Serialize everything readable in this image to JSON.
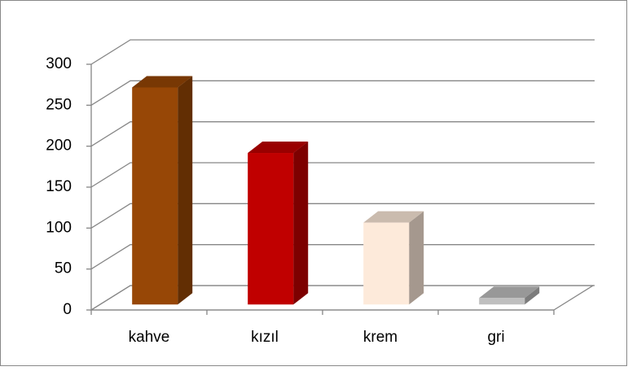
{
  "chart_data": {
    "type": "bar3d",
    "categories": [
      "kahve",
      "kızıl",
      "krem",
      "gri"
    ],
    "series": [
      {
        "values": [
          265,
          185,
          100,
          8
        ],
        "colors": [
          "#974706",
          "#c00000",
          "#fdeada",
          "#bfbfbf"
        ]
      }
    ],
    "ylim": [
      0,
      300
    ],
    "yticks": [
      0,
      50,
      100,
      150,
      200,
      250,
      300
    ],
    "grid": true
  }
}
